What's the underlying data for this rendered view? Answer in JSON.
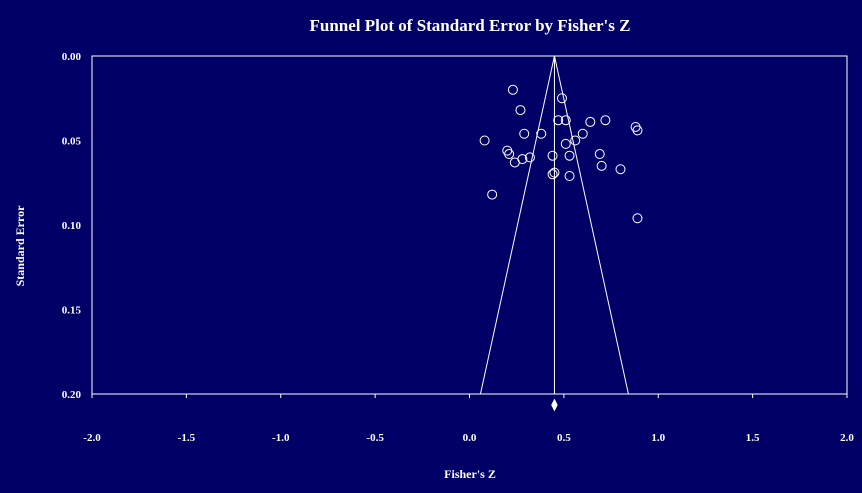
{
  "chart_data": {
    "type": "scatter",
    "title": "Funnel Plot of Standard Error by Fisher's Z",
    "xlabel": "Fisher's Z",
    "ylabel": "Standard Error",
    "xlim": [
      -2.0,
      2.0
    ],
    "ylim": [
      0.0,
      0.2
    ],
    "y_inverted": true,
    "x_ticks": [
      "-2.0",
      "-1.5",
      "-1.0",
      "-0.5",
      "0.0",
      "0.5",
      "1.0",
      "1.5",
      "2.0"
    ],
    "y_ticks": [
      "0.00",
      "0.05",
      "0.10",
      "0.15",
      "0.20"
    ],
    "grid": false,
    "background_color": "#000066",
    "mark_color": "#ffffff",
    "summary_effect": 0.45,
    "funnel": {
      "apex": [
        0.45,
        0.0
      ],
      "base_left": [
        0.058,
        0.2
      ],
      "base_right": [
        0.842,
        0.2
      ]
    },
    "points": [
      {
        "x": 0.23,
        "y": 0.02
      },
      {
        "x": 0.49,
        "y": 0.025
      },
      {
        "x": 0.27,
        "y": 0.032
      },
      {
        "x": 0.47,
        "y": 0.038
      },
      {
        "x": 0.51,
        "y": 0.038
      },
      {
        "x": 0.64,
        "y": 0.039
      },
      {
        "x": 0.72,
        "y": 0.038
      },
      {
        "x": 0.88,
        "y": 0.042
      },
      {
        "x": 0.89,
        "y": 0.044
      },
      {
        "x": 0.29,
        "y": 0.046
      },
      {
        "x": 0.38,
        "y": 0.046
      },
      {
        "x": 0.6,
        "y": 0.046
      },
      {
        "x": 0.08,
        "y": 0.05
      },
      {
        "x": 0.56,
        "y": 0.05
      },
      {
        "x": 0.51,
        "y": 0.052
      },
      {
        "x": 0.2,
        "y": 0.056
      },
      {
        "x": 0.21,
        "y": 0.058
      },
      {
        "x": 0.69,
        "y": 0.058
      },
      {
        "x": 0.44,
        "y": 0.059
      },
      {
        "x": 0.53,
        "y": 0.059
      },
      {
        "x": 0.32,
        "y": 0.06
      },
      {
        "x": 0.28,
        "y": 0.061
      },
      {
        "x": 0.24,
        "y": 0.063
      },
      {
        "x": 0.7,
        "y": 0.065
      },
      {
        "x": 0.8,
        "y": 0.067
      },
      {
        "x": 0.45,
        "y": 0.069
      },
      {
        "x": 0.44,
        "y": 0.07
      },
      {
        "x": 0.53,
        "y": 0.071
      },
      {
        "x": 0.12,
        "y": 0.082
      },
      {
        "x": 0.89,
        "y": 0.096
      }
    ]
  }
}
